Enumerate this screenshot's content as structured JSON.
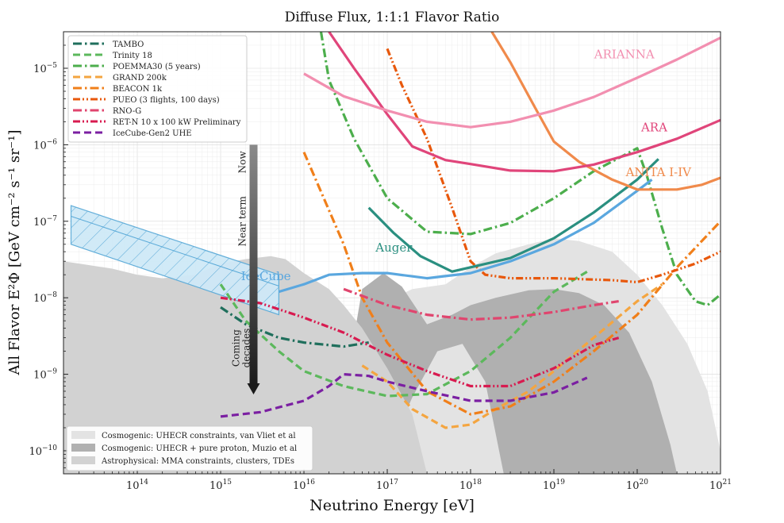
{
  "chart_data": {
    "type": "line",
    "title": "Diffuse Flux, 1:1:1 Flavor Ratio",
    "xlabel": "Neutrino Energy [eV]",
    "ylabel": "All Flavor E²Φ [GeV cm⁻² s⁻¹ sr⁻¹]",
    "x_scale": "log",
    "y_scale": "log",
    "xlim": [
      13000000000000.0,
      1e+21
    ],
    "ylim": [
      5e-11,
      3e-05
    ],
    "x_ticks": [
      {
        "base": "10",
        "exp": "14",
        "value": 100000000000000.0
      },
      {
        "base": "10",
        "exp": "15",
        "value": 1000000000000000.0
      },
      {
        "base": "10",
        "exp": "16",
        "value": 1e+16
      },
      {
        "base": "10",
        "exp": "17",
        "value": 1e+17
      },
      {
        "base": "10",
        "exp": "18",
        "value": 1e+18
      },
      {
        "base": "10",
        "exp": "19",
        "value": 1e+19
      },
      {
        "base": "10",
        "exp": "20",
        "value": 1e+20
      },
      {
        "base": "10",
        "exp": "21",
        "value": 1e+21
      }
    ],
    "y_ticks": [
      {
        "base": "10",
        "exp": "−10",
        "value": 1e-10
      },
      {
        "base": "10",
        "exp": "−9",
        "value": 1e-09
      },
      {
        "base": "10",
        "exp": "−8",
        "value": 1e-08
      },
      {
        "base": "10",
        "exp": "−7",
        "value": 1e-07
      },
      {
        "base": "10",
        "exp": "−6",
        "value": 1e-06
      },
      {
        "base": "10",
        "exp": "−5",
        "value": 1e-05
      }
    ],
    "regions": [
      {
        "name": "Cosmogenic: UHECR constraints, van Vliet et al",
        "color": "#e3e3e3",
        "upper": [
          [
            1e+16,
            1.2e-10
          ],
          [
            3e+16,
            2e-10
          ],
          [
            6e+16,
            7e-09
          ],
          [
            2e+17,
            1.3e-08
          ],
          [
            5e+17,
            1.5e-08
          ],
          [
            1e+18,
            2.5e-08
          ],
          [
            2e+18,
            3.8e-08
          ],
          [
            5e+18,
            5e-08
          ],
          [
            1e+19,
            6e-08
          ],
          [
            2e+19,
            5.5e-08
          ],
          [
            5e+19,
            4e-08
          ],
          [
            1e+20,
            2e-08
          ],
          [
            2e+20,
            8e-09
          ],
          [
            4e+20,
            2.5e-09
          ],
          [
            7e+20,
            6e-10
          ],
          [
            1e+21,
            1e-10
          ]
        ]
      },
      {
        "name": "Cosmogenic: UHECR + pure proton, Muzio et al",
        "color": "#b0b0b0",
        "upper": [
          [
            2.2e+16,
            5e-11
          ],
          [
            3e+16,
            5e-10
          ],
          [
            5e+16,
            1.3e-08
          ],
          [
            9e+16,
            2.1e-08
          ],
          [
            1.5e+17,
            1.4e-08
          ],
          [
            3e+17,
            4.5e-09
          ],
          [
            6e+17,
            6e-09
          ],
          [
            1e+18,
            8e-09
          ],
          [
            2e+18,
            1e-08
          ],
          [
            5e+18,
            1.25e-08
          ],
          [
            1e+19,
            1.3e-08
          ],
          [
            2e+19,
            1.15e-08
          ],
          [
            4e+19,
            8e-09
          ],
          [
            8e+19,
            3.5e-09
          ],
          [
            1.5e+20,
            8e-10
          ],
          [
            2.5e+20,
            1.2e-10
          ],
          [
            3e+20,
            5e-11
          ]
        ],
        "lower": [
          [
            3e+20,
            5e-11
          ],
          [
            1e+20,
            5e-11
          ],
          [
            4e+19,
            5e-11
          ],
          [
            1.5e+19,
            5e-11
          ],
          [
            5e+18,
            5e-11
          ],
          [
            2.5e+18,
            5e-11
          ],
          [
            1.5e+18,
            8e-10
          ],
          [
            8e+17,
            2.5e-09
          ],
          [
            4e+17,
            2e-09
          ],
          [
            2e+17,
            5e-10
          ],
          [
            8e+16,
            5e-11
          ]
        ]
      },
      {
        "name": "Astrophysical: MMA constraints, clusters, TDEs",
        "color": "#d2d2d2",
        "upper": [
          [
            13000000000000.0,
            3e-08
          ],
          [
            20000000000000.0,
            2.8e-08
          ],
          [
            50000000000000.0,
            2.4e-08
          ],
          [
            100000000000000.0,
            2e-08
          ],
          [
            200000000000000.0,
            1.8e-08
          ],
          [
            500000000000000.0,
            2e-08
          ],
          [
            1000000000000000.0,
            2.8e-08
          ],
          [
            2000000000000000.0,
            3.2e-08
          ],
          [
            4000000000000000.0,
            3.5e-08
          ],
          [
            6000000000000000.0,
            3.2e-08
          ],
          [
            1e+16,
            2.1e-08
          ],
          [
            2e+16,
            1.3e-08
          ],
          [
            3e+16,
            8e-09
          ],
          [
            5e+16,
            4e-09
          ],
          [
            1e+17,
            1.2e-09
          ],
          [
            2e+17,
            3e-10
          ],
          [
            3e+17,
            5e-11
          ]
        ]
      }
    ],
    "icecube_band": {
      "name": "IceCube",
      "color": "#aee0f5",
      "edge": "#5aaad8",
      "upper": [
        [
          16000000000000.0,
          1.6e-07
        ],
        [
          5000000000000000.0,
          2e-08
        ]
      ],
      "lower": [
        [
          16000000000000.0,
          5e-08
        ],
        [
          5000000000000000.0,
          6e-09
        ]
      ]
    },
    "series": [
      {
        "name": "TAMBO",
        "color": "#1f6f5c",
        "dash": "dashdot",
        "legend": true,
        "points": [
          [
            1000000000000000.0,
            7.5e-09
          ],
          [
            2000000000000000.0,
            4.5e-09
          ],
          [
            5000000000000000.0,
            3e-09
          ],
          [
            1e+16,
            2.6e-09
          ],
          [
            3e+16,
            2.3e-09
          ],
          [
            6e+16,
            2.6e-09
          ]
        ]
      },
      {
        "name": "Trinity 18",
        "color": "#5cb85c",
        "dash": "dashed",
        "legend": true,
        "points": [
          [
            1000000000000000.0,
            1.5e-08
          ],
          [
            2000000000000000.0,
            5e-09
          ],
          [
            5000000000000000.0,
            2e-09
          ],
          [
            1e+16,
            1.1e-09
          ],
          [
            3e+16,
            7e-10
          ],
          [
            1e+17,
            5.2e-10
          ],
          [
            3e+17,
            5.5e-10
          ],
          [
            1e+18,
            1.1e-09
          ],
          [
            3e+18,
            3e-09
          ],
          [
            1e+19,
            1.2e-08
          ],
          [
            2.7e+19,
            2.3e-08
          ]
        ]
      },
      {
        "name": "POEMMA30 (5 years)",
        "color": "#4cae4c",
        "dash": "dashdot",
        "legend": true,
        "points": [
          [
            1.6e+16,
            3e-05
          ],
          [
            2e+16,
            7e-06
          ],
          [
            4e+16,
            1.2e-06
          ],
          [
            1e+17,
            2e-07
          ],
          [
            3e+17,
            7.3e-08
          ],
          [
            1e+18,
            6.8e-08
          ],
          [
            3e+18,
            9.5e-08
          ],
          [
            1e+19,
            2e-07
          ],
          [
            3e+19,
            4.5e-07
          ],
          [
            1e+20,
            9e-07
          ],
          [
            1.3e+20,
            4e-07
          ],
          [
            2e+20,
            8e-08
          ],
          [
            3e+20,
            2e-08
          ],
          [
            5e+20,
            9e-09
          ],
          [
            7e+20,
            8e-09
          ],
          [
            1e+21,
            1.1e-08
          ]
        ]
      },
      {
        "name": "GRAND 200k",
        "color": "#f4a540",
        "dash": "dashed",
        "legend": true,
        "points": [
          [
            5e+16,
            1.3e-09
          ],
          [
            1e+17,
            8e-10
          ],
          [
            2e+17,
            3.5e-10
          ],
          [
            5e+17,
            2e-10
          ],
          [
            1e+18,
            2.2e-10
          ],
          [
            2e+18,
            3.5e-10
          ],
          [
            5e+18,
            6e-10
          ],
          [
            1e+19,
            1.1e-09
          ],
          [
            3e+19,
            3e-09
          ],
          [
            1e+20,
            9e-09
          ],
          [
            2e+20,
            1.5e-08
          ]
        ]
      },
      {
        "name": "BEACON 1k",
        "color": "#f07f1a",
        "dash": "dashdot",
        "legend": true,
        "points": [
          [
            1e+16,
            8e-07
          ],
          [
            3e+16,
            5e-08
          ],
          [
            5e+16,
            1e-08
          ],
          [
            1e+17,
            2.6e-09
          ],
          [
            3e+17,
            6e-10
          ],
          [
            1e+18,
            3e-10
          ],
          [
            3e+18,
            3.8e-10
          ],
          [
            1e+19,
            8e-10
          ],
          [
            3e+19,
            2e-09
          ],
          [
            1e+20,
            6e-09
          ],
          [
            3e+20,
            2.5e-08
          ],
          [
            1e+21,
            1e-07
          ]
        ]
      },
      {
        "name": "PUEO (3 flights, 100 days)",
        "color": "#e8580c",
        "dash": "dashdotdot",
        "legend": true,
        "points": [
          [
            1e+17,
            1.8e-05
          ],
          [
            1.5e+17,
            6e-06
          ],
          [
            3e+17,
            1.2e-06
          ],
          [
            6e+17,
            1.5e-07
          ],
          [
            1e+18,
            3e-08
          ],
          [
            1.5e+18,
            2e-08
          ],
          [
            3e+18,
            1.8e-08
          ],
          [
            1e+19,
            1.8e-08
          ],
          [
            5e+19,
            1.7e-08
          ],
          [
            1e+20,
            1.6e-08
          ],
          [
            2e+20,
            2e-08
          ],
          [
            5e+20,
            2.8e-08
          ],
          [
            1e+21,
            4e-08
          ]
        ]
      },
      {
        "name": "RNO-G",
        "color": "#e0456e",
        "dash": "dashdot",
        "legend": true,
        "points": [
          [
            3e+16,
            1.3e-08
          ],
          [
            1e+17,
            8e-09
          ],
          [
            3e+17,
            6e-09
          ],
          [
            1e+18,
            5.2e-09
          ],
          [
            3e+18,
            5.5e-09
          ],
          [
            1e+19,
            6.5e-09
          ],
          [
            3e+19,
            8e-09
          ],
          [
            6e+19,
            9e-09
          ]
        ]
      },
      {
        "name": "RET-N 10 x 100 kW Preliminary",
        "color": "#d81b50",
        "dash": "dashdotdot",
        "legend": true,
        "points": [
          [
            1000000000000000.0,
            1e-08
          ],
          [
            3000000000000000.0,
            8.5e-09
          ],
          [
            1e+16,
            5.5e-09
          ],
          [
            3e+16,
            3.5e-09
          ],
          [
            1e+17,
            1.8e-09
          ],
          [
            3e+17,
            1.1e-09
          ],
          [
            1e+18,
            7e-10
          ],
          [
            3e+18,
            7e-10
          ],
          [
            1e+19,
            1.2e-09
          ],
          [
            3e+19,
            2.4e-09
          ],
          [
            6e+19,
            3e-09
          ]
        ]
      },
      {
        "name": "IceCube-Gen2 UHE",
        "color": "#7b1fa2",
        "dash": "dashed",
        "legend": true,
        "points": [
          [
            1000000000000000.0,
            2.8e-10
          ],
          [
            3000000000000000.0,
            3.2e-10
          ],
          [
            1e+16,
            4.5e-10
          ],
          [
            2e+16,
            7e-10
          ],
          [
            3e+16,
            1e-09
          ],
          [
            6e+16,
            9.5e-10
          ],
          [
            1e+17,
            8e-10
          ],
          [
            3e+17,
            6e-10
          ],
          [
            1e+18,
            4.5e-10
          ],
          [
            3e+18,
            4.5e-10
          ],
          [
            1e+19,
            5.8e-10
          ],
          [
            2.5e+19,
            9e-10
          ]
        ]
      },
      {
        "name": "IceCube",
        "color": "#5aa7df",
        "dash": "solid",
        "legend": false,
        "points": [
          [
            5000000000000000.0,
            1.2e-08
          ],
          [
            1e+16,
            1.5e-08
          ],
          [
            2e+16,
            2e-08
          ],
          [
            5e+16,
            2.1e-08
          ],
          [
            1e+17,
            2.1e-08
          ],
          [
            3e+17,
            1.8e-08
          ],
          [
            1e+18,
            2.1e-08
          ],
          [
            3e+18,
            3e-08
          ],
          [
            1e+19,
            5e-08
          ],
          [
            3e+19,
            9.5e-08
          ],
          [
            1e+20,
            2.5e-07
          ],
          [
            1.5e+20,
            3.5e-07
          ]
        ]
      },
      {
        "name": "Auger",
        "color": "#2a8f80",
        "dash": "solid",
        "legend": false,
        "points": [
          [
            6e+16,
            1.5e-07
          ],
          [
            1.2e+17,
            7e-08
          ],
          [
            2.5e+17,
            3.5e-08
          ],
          [
            6e+17,
            2.2e-08
          ],
          [
            1e+18,
            2.5e-08
          ],
          [
            3e+18,
            3.3e-08
          ],
          [
            1e+19,
            6e-08
          ],
          [
            3e+19,
            1.3e-07
          ],
          [
            1e+20,
            3.5e-07
          ],
          [
            1.8e+20,
            6.5e-07
          ]
        ]
      },
      {
        "name": "ANITA I-IV",
        "color": "#f08a4b",
        "dash": "solid",
        "legend": false,
        "points": [
          [
            1.8e+18,
            3e-05
          ],
          [
            3e+18,
            1.2e-05
          ],
          [
            6e+18,
            3e-06
          ],
          [
            1e+19,
            1.1e-06
          ],
          [
            2e+19,
            6e-07
          ],
          [
            5e+19,
            3.5e-07
          ],
          [
            1e+20,
            2.6e-07
          ],
          [
            3e+20,
            2.6e-07
          ],
          [
            6e+20,
            3e-07
          ],
          [
            1e+21,
            3.7e-07
          ]
        ]
      },
      {
        "name": "ARA",
        "color": "#e0457a",
        "dash": "solid",
        "legend": false,
        "points": [
          [
            2e+16,
            3e-05
          ],
          [
            4e+16,
            1e-05
          ],
          [
            1e+17,
            2.5e-06
          ],
          [
            2e+17,
            9.5e-07
          ],
          [
            5e+17,
            6.3e-07
          ],
          [
            1e+18,
            5.6e-07
          ],
          [
            3e+18,
            4.6e-07
          ],
          [
            1e+19,
            4.5e-07
          ],
          [
            3e+19,
            5.5e-07
          ],
          [
            1e+20,
            8e-07
          ],
          [
            3e+20,
            1.2e-06
          ],
          [
            1e+21,
            2.1e-06
          ]
        ]
      },
      {
        "name": "ARIANNA",
        "color": "#f28fb0",
        "dash": "solid",
        "legend": false,
        "points": [
          [
            1e+16,
            8.5e-06
          ],
          [
            3e+16,
            4.3e-06
          ],
          [
            1e+17,
            2.8e-06
          ],
          [
            3e+17,
            2e-06
          ],
          [
            1e+18,
            1.7e-06
          ],
          [
            3e+18,
            2e-06
          ],
          [
            1e+19,
            2.8e-06
          ],
          [
            3e+19,
            4.2e-06
          ],
          [
            1e+20,
            7.5e-06
          ],
          [
            3e+20,
            1.3e-05
          ],
          [
            1e+21,
            2.5e-05
          ]
        ]
      }
    ],
    "annotations": [
      {
        "text": "ARIANNA",
        "color": "#f28fb0",
        "x": 7e+19,
        "y": 1.35e-05
      },
      {
        "text": "ARA",
        "color": "#e0457a",
        "x": 1.6e+20,
        "y": 1.5e-06
      },
      {
        "text": "ANITA I-IV",
        "color": "#f08a4b",
        "x": 1.8e+20,
        "y": 3.9e-07
      },
      {
        "text": "Auger",
        "color": "#2a8f80",
        "x": 1.2e+17,
        "y": 4e-08
      },
      {
        "text": "IceCube",
        "color": "#5aa7df",
        "x": 3500000000000000.0,
        "y": 1.7e-08
      }
    ],
    "arrow": {
      "labels": [
        "Now",
        "Near term",
        "Coming",
        "decades"
      ],
      "x": 1500000000000000.0,
      "y_top": 1e-06,
      "y_bottom": 6e-10
    },
    "legend_top_position": "top-left",
    "legend_bottom_position": "bottom-left",
    "grid": true
  }
}
